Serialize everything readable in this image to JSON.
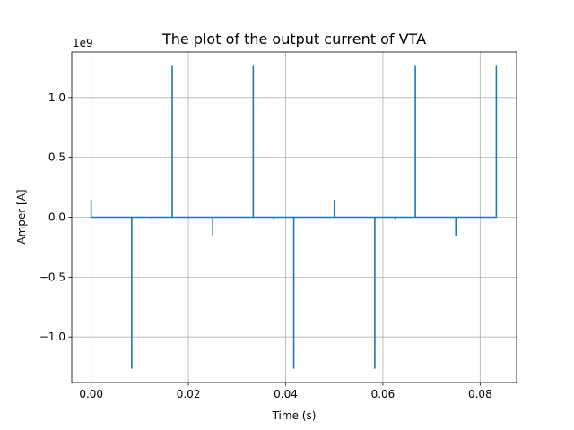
{
  "chart_data": {
    "type": "line",
    "title": "The plot of the output current of VTA",
    "xlabel": "Time (s)",
    "ylabel": "Amper [A]",
    "y_scale_label": "1e9",
    "y_multiplier": 1000000000,
    "xlim": [
      -0.004,
      0.0875
    ],
    "ylim": [
      -1.38,
      1.38
    ],
    "grid": true,
    "x_ticks": [
      0.0,
      0.02,
      0.04,
      0.06,
      0.08
    ],
    "x_tick_labels": [
      "0.00",
      "0.02",
      "0.04",
      "0.06",
      "0.08"
    ],
    "y_ticks": [
      -1.0,
      -0.5,
      0.0,
      0.5,
      1.0
    ],
    "y_tick_labels": [
      "−1.0",
      "−0.5",
      "0.0",
      "0.5",
      "1.0"
    ],
    "series": [
      {
        "color": "#1f77b4",
        "x": [
          0.0,
          0.0,
          0.0,
          0.00833,
          0.00833,
          0.00833,
          0.0125,
          0.0125,
          0.0125,
          0.01667,
          0.01667,
          0.01667,
          0.025,
          0.025,
          0.025,
          0.03333,
          0.03333,
          0.03333,
          0.0375,
          0.0375,
          0.0375,
          0.04167,
          0.04167,
          0.04167,
          0.05,
          0.05,
          0.05,
          0.05833,
          0.05833,
          0.05833,
          0.0625,
          0.0625,
          0.0625,
          0.06667,
          0.06667,
          0.06667,
          0.075,
          0.075,
          0.075,
          0.08333,
          0.08333,
          0.08333
        ],
        "y": [
          0.0,
          0.14,
          0.0,
          0.0,
          -1.26,
          0.0,
          0.0,
          -0.015,
          0.0,
          0.0,
          1.26,
          0.0,
          0.0,
          -0.15,
          0.0,
          0.0,
          1.26,
          0.0,
          0.0,
          -0.015,
          0.0,
          0.0,
          -1.26,
          0.0,
          0.0,
          0.14,
          0.0,
          0.0,
          -1.26,
          0.0,
          0.0,
          -0.015,
          0.0,
          0.0,
          1.26,
          0.0,
          0.0,
          -0.15,
          0.0,
          0.0,
          1.26,
          0.0
        ]
      }
    ]
  }
}
